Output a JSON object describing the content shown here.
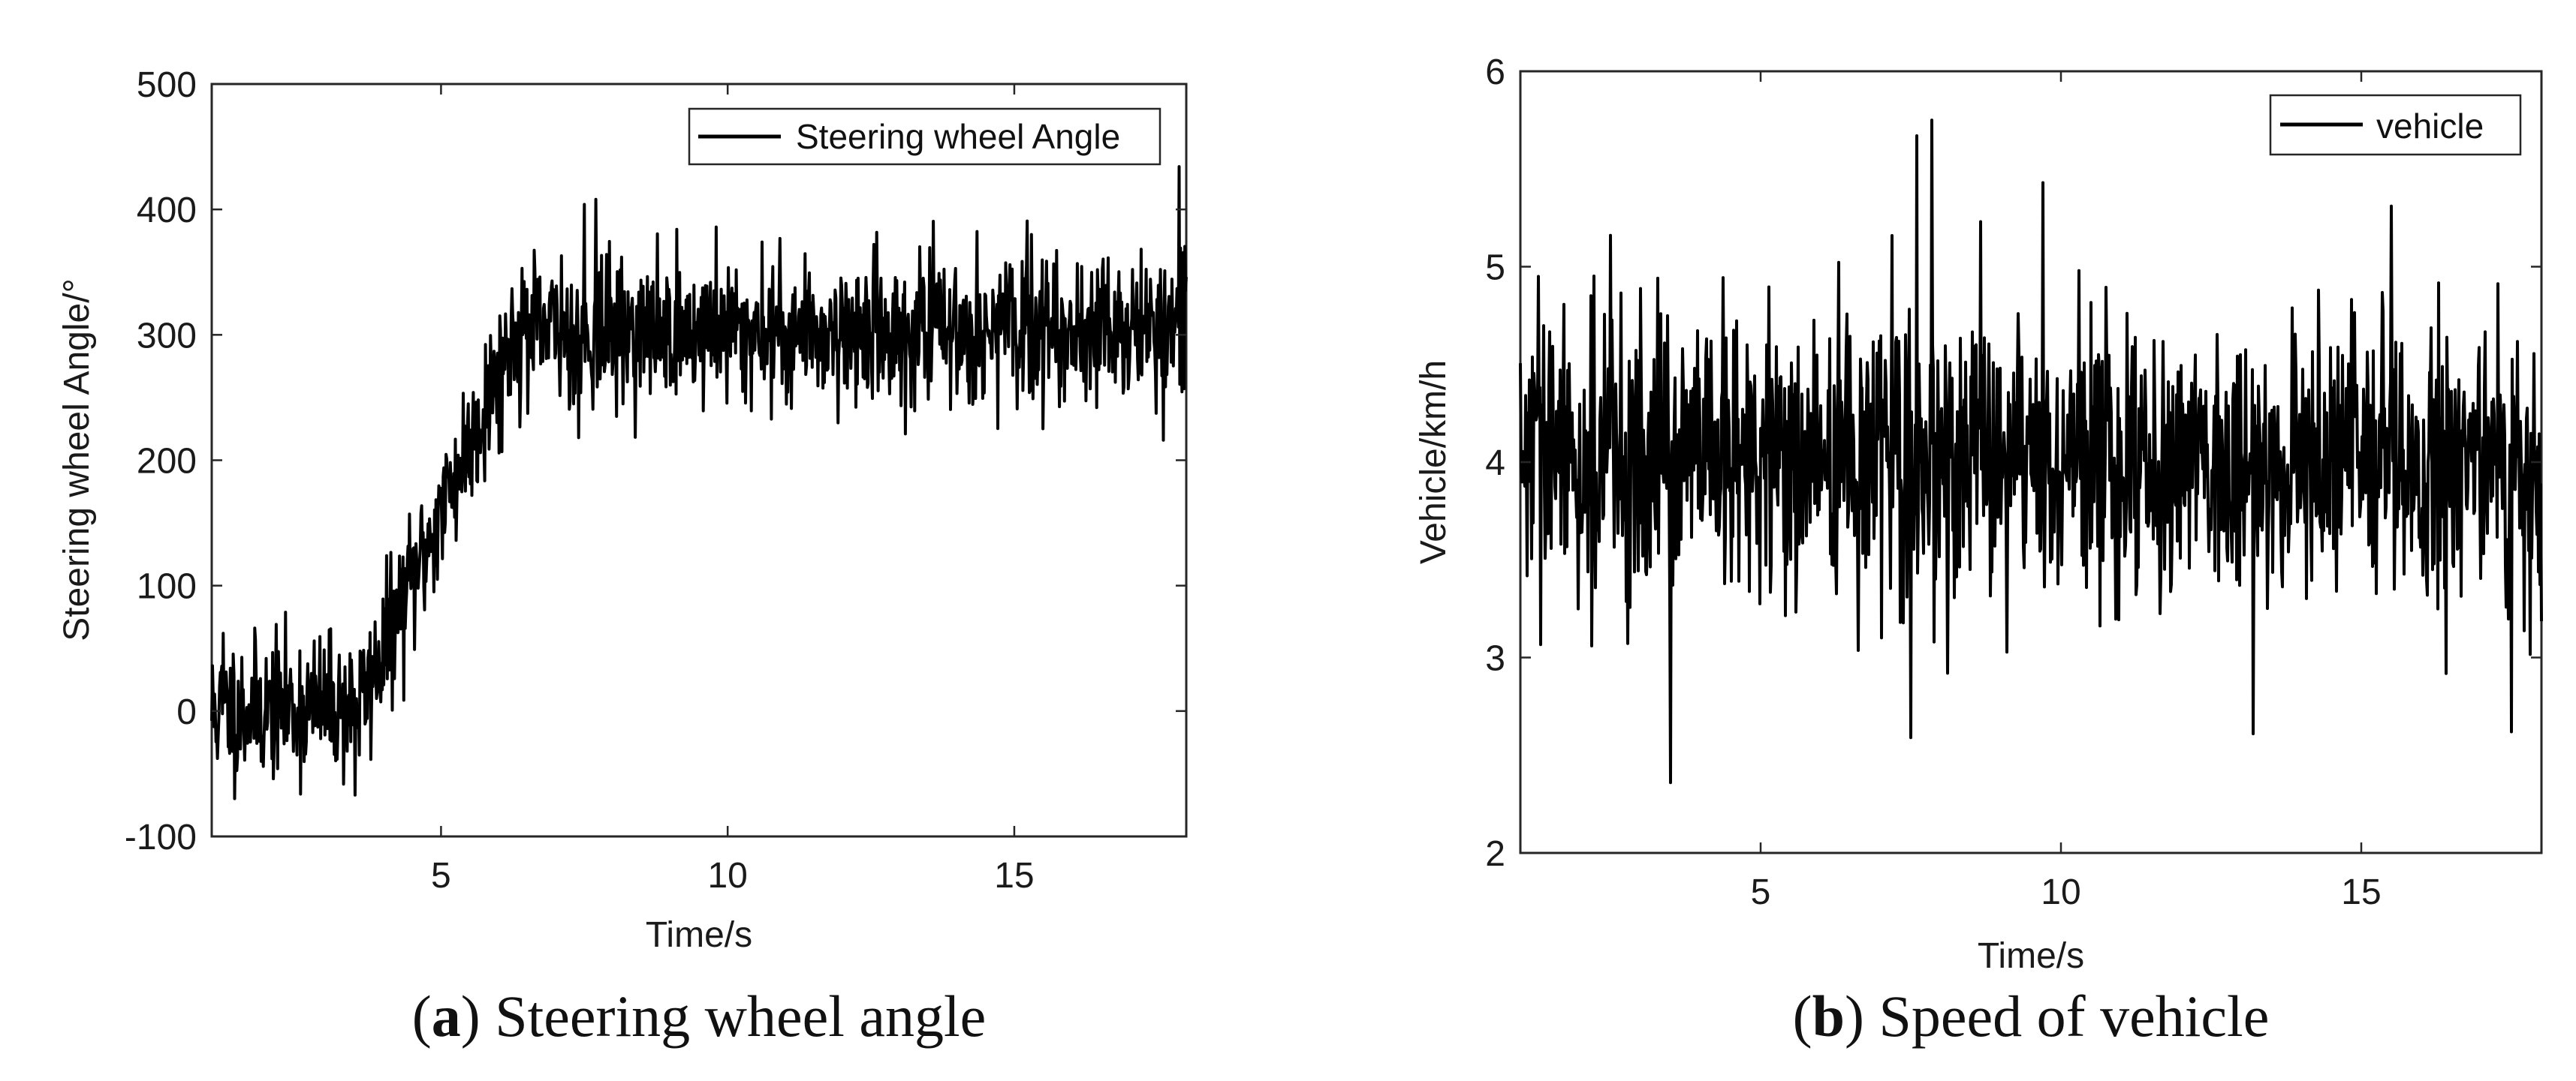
{
  "chart_data": [
    {
      "type": "line",
      "panel": "a",
      "caption_letter": "a",
      "caption_text": "Steering wheel angle",
      "xlabel": "Time/s",
      "ylabel": "Steering wheel Angle/°",
      "xlim": [
        1,
        18
      ],
      "ylim": [
        -100,
        500
      ],
      "xticks": [
        5,
        10,
        15
      ],
      "yticks": [
        -100,
        0,
        100,
        200,
        300,
        400,
        500
      ],
      "legend": "Steering wheel Angle",
      "legend_position": "top-right",
      "series": [
        {
          "name": "Steering wheel Angle",
          "noisy": true,
          "noise_std": 28,
          "samples_per_second": 80,
          "seed": 11,
          "base_curve": {
            "x": [
              1,
              3.6,
              6.3,
              18
            ],
            "y": [
              0,
              5,
              302,
              305
            ]
          },
          "spikes": [
            {
              "x": 7.7,
              "y": 408
            },
            {
              "x": 7.5,
              "y": 404
            },
            {
              "x": 7.9,
              "y": 362
            },
            {
              "x": 7.1,
              "y": 363
            },
            {
              "x": 9.8,
              "y": 386
            },
            {
              "x": 15.3,
              "y": 380
            },
            {
              "x": 3.5,
              "y": -67
            },
            {
              "x": 17.6,
              "y": 216
            },
            {
              "x": 7.4,
              "y": 218
            },
            {
              "x": 13.1,
              "y": 221
            },
            {
              "x": 10.6,
              "y": 374
            },
            {
              "x": 1.2,
              "y": 62
            }
          ]
        }
      ]
    },
    {
      "type": "line",
      "panel": "b",
      "caption_letter": "b",
      "caption_text": "Speed of vehicle",
      "xlabel": "Time/s",
      "ylabel": "Vehicle/km/h",
      "xlim": [
        1,
        18
      ],
      "ylim": [
        2,
        6
      ],
      "xticks": [
        5,
        10,
        15
      ],
      "yticks": [
        2,
        3,
        4,
        5,
        6
      ],
      "legend": "vehicle",
      "legend_position": "top-right",
      "series": [
        {
          "name": "vehicle",
          "noisy": true,
          "noise_std": 0.36,
          "samples_per_second": 80,
          "seed": 29,
          "base_curve": {
            "x": [
              1,
              18
            ],
            "y": [
              4.0,
              4.0
            ]
          },
          "spikes": [
            {
              "x": 7.6,
              "y": 5.67
            },
            {
              "x": 7.85,
              "y": 5.75
            },
            {
              "x": 9.7,
              "y": 5.43
            },
            {
              "x": 15.5,
              "y": 5.31
            },
            {
              "x": 2.5,
              "y": 5.16
            },
            {
              "x": 17.5,
              "y": 5.1
            },
            {
              "x": 3.5,
              "y": 2.36
            },
            {
              "x": 7.5,
              "y": 2.59
            },
            {
              "x": 13.2,
              "y": 2.61
            },
            {
              "x": 17.5,
              "y": 2.62
            },
            {
              "x": 1.3,
              "y": 4.95
            },
            {
              "x": 10.3,
              "y": 4.98
            }
          ]
        }
      ]
    }
  ]
}
